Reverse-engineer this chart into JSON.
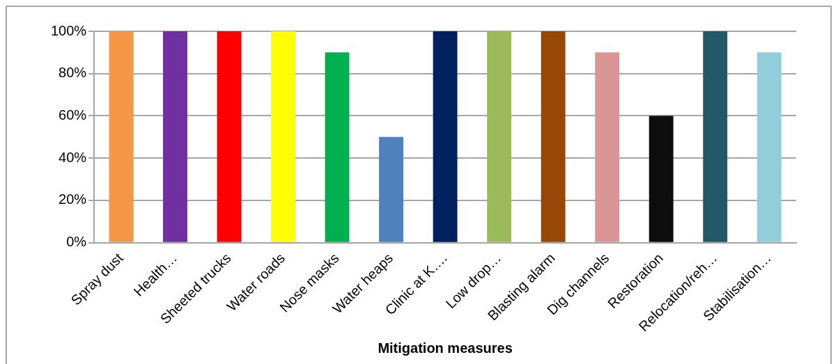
{
  "chart_data": {
    "type": "bar",
    "xlabel": "Mitigation measures",
    "categories": [
      "Spray dust",
      "Health…",
      "Sheeted trucks",
      "Water roads",
      "Nose masks",
      "Water heaps",
      "Clinic at K….",
      "Low drop…",
      "Blasting alarm",
      "Dig channels",
      "Restoration",
      "Relocation/reh…",
      "Stabilisation…"
    ],
    "values": [
      100,
      100,
      100,
      100,
      90,
      50,
      100,
      100,
      100,
      90,
      60,
      100,
      90
    ],
    "colors": [
      "#f79646",
      "#7030a0",
      "#ff0000",
      "#ffff00",
      "#00b050",
      "#4f81bd",
      "#002060",
      "#9bbb59",
      "#974706",
      "#da9694",
      "#0d0d0d",
      "#215967",
      "#92cddc"
    ],
    "ylim": [
      0,
      100
    ],
    "yticks": [
      {
        "value": 0,
        "label": "0%"
      },
      {
        "value": 20,
        "label": "20%"
      },
      {
        "value": 40,
        "label": "40%"
      },
      {
        "value": 60,
        "label": "60%"
      },
      {
        "value": 80,
        "label": "80%"
      },
      {
        "value": 100,
        "label": "100%"
      }
    ],
    "grid": "y",
    "legend": false
  }
}
